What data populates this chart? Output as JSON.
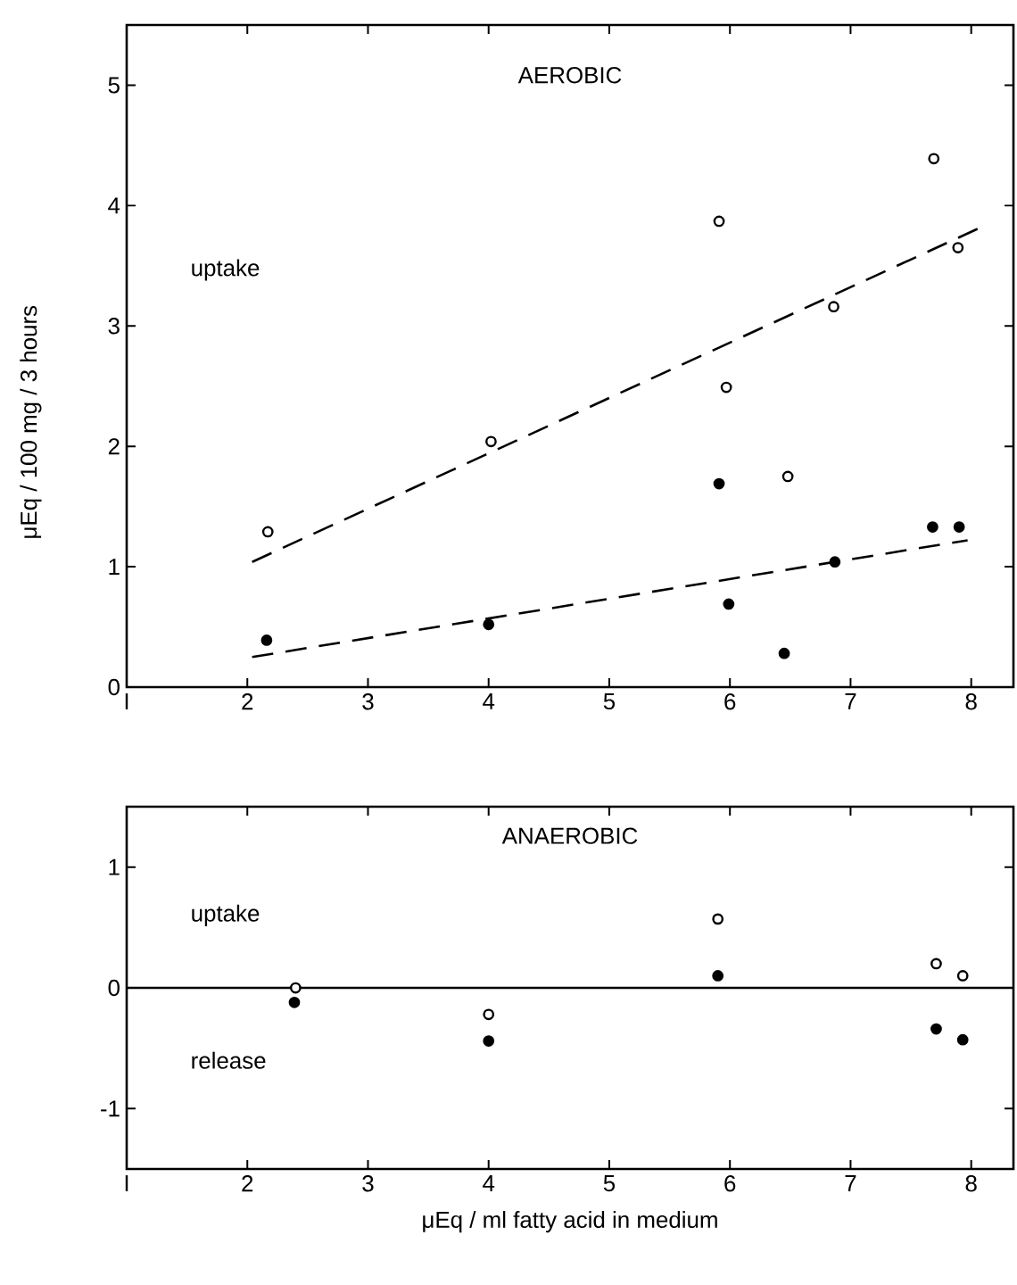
{
  "chart_data": [
    {
      "type": "scatter",
      "title": "AEROBIC",
      "ylabel": "μEq / 100 mg / 3 hours",
      "annotations": [
        "uptake"
      ],
      "xlim": [
        1,
        8.35
      ],
      "xticks": [
        {
          "value": 1,
          "label": "I"
        },
        2,
        3,
        4,
        5,
        6,
        7,
        8
      ],
      "ylim": [
        0,
        5.5
      ],
      "yticks": [
        0,
        1,
        2,
        3,
        4,
        5
      ],
      "grid": false,
      "marker": "circle",
      "series": [
        {
          "color": "#000000",
          "x": [
            2.17,
            4.02,
            5.91,
            5.97,
            6.48,
            6.86,
            7.69,
            7.89
          ],
          "values": [
            1.29,
            2.04,
            3.87,
            2.49,
            1.75,
            3.16,
            4.39,
            3.65
          ]
        },
        {
          "color": "#000000",
          "x": [
            2.16,
            4.0,
            5.91,
            5.99,
            6.45,
            6.87,
            7.68,
            7.9
          ],
          "values": [
            0.39,
            0.52,
            1.69,
            0.69,
            0.28,
            1.04,
            1.33,
            1.33
          ]
        },
        {
          "type": "line",
          "color": "#000000",
          "line_style": "dashed",
          "marker": "none",
          "x": [
            2.04,
            8.06
          ],
          "values": [
            1.04,
            3.81
          ]
        },
        {
          "type": "line",
          "color": "#000000",
          "line_style": "dashed",
          "marker": "none",
          "x": [
            2.04,
            7.97
          ],
          "values": [
            0.25,
            1.22
          ]
        }
      ]
    },
    {
      "type": "scatter",
      "title": "ANAEROBIC",
      "xlabel": "μEq / ml fatty acid in medium",
      "annotations": [
        "uptake",
        "release"
      ],
      "xlim": [
        1,
        8.35
      ],
      "xticks": [
        {
          "value": 1,
          "label": "I"
        },
        2,
        3,
        4,
        5,
        6,
        7,
        8
      ],
      "ylim": [
        -1.5,
        1.5
      ],
      "yticks": [
        -1,
        0,
        1
      ],
      "grid": false,
      "marker": "circle",
      "ref_lines": [
        {
          "axis": "y",
          "value": 0,
          "color": "#000000"
        }
      ],
      "series": [
        {
          "color": "#000000",
          "x": [
            2.4,
            4.0,
            5.9,
            7.71,
            7.93
          ],
          "values": [
            0.0,
            -0.22,
            0.57,
            0.2,
            0.1
          ]
        },
        {
          "color": "#000000",
          "x": [
            2.39,
            4.0,
            5.9,
            7.71,
            7.93
          ],
          "values": [
            -0.12,
            -0.44,
            0.1,
            -0.34,
            -0.43
          ]
        }
      ]
    }
  ]
}
